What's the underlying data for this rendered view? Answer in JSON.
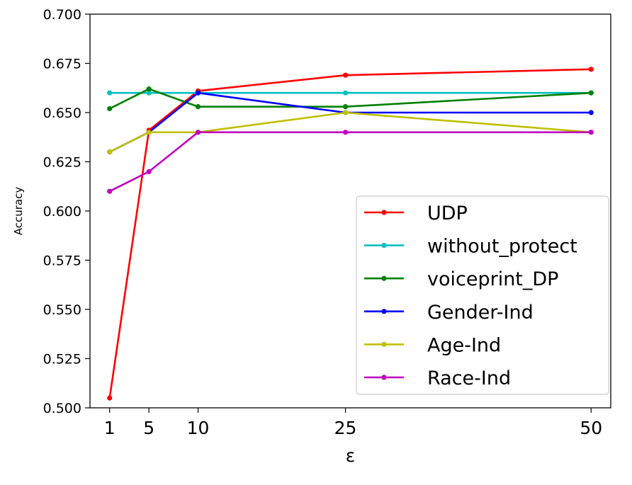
{
  "chart_data": {
    "type": "line",
    "xlabel": "ε",
    "ylabel": "Accuracy",
    "x": [
      1,
      5,
      10,
      25,
      50
    ],
    "x_tick_labels": [
      "1",
      "5",
      "10",
      "25",
      "50"
    ],
    "ylim": [
      0.5,
      0.7
    ],
    "y_ticks": [
      0.5,
      0.525,
      0.55,
      0.575,
      0.6,
      0.625,
      0.65,
      0.675,
      0.7
    ],
    "y_tick_labels": [
      "0.500",
      "0.525",
      "0.550",
      "0.575",
      "0.600",
      "0.625",
      "0.650",
      "0.675",
      "0.700"
    ],
    "grid": false,
    "legend_position": "lower-right",
    "series": [
      {
        "name": "UDP",
        "color": "#ff0000",
        "values": [
          0.505,
          0.641,
          0.661,
          0.669,
          0.672
        ]
      },
      {
        "name": "without_protect",
        "color": "#00bfbf",
        "values": [
          0.66,
          0.66,
          0.66,
          0.66,
          0.66
        ]
      },
      {
        "name": "voiceprint_DP",
        "color": "#008000",
        "values": [
          0.652,
          0.662,
          0.653,
          0.653,
          0.66
        ]
      },
      {
        "name": "Gender-Ind",
        "color": "#0000ff",
        "values": [
          0.63,
          0.64,
          0.66,
          0.65,
          0.65
        ]
      },
      {
        "name": "Age-Ind",
        "color": "#bfbf00",
        "values": [
          0.63,
          0.64,
          0.64,
          0.65,
          0.64
        ]
      },
      {
        "name": "Race-Ind",
        "color": "#bf00bf",
        "values": [
          0.61,
          0.62,
          0.64,
          0.64,
          0.64
        ]
      }
    ]
  }
}
